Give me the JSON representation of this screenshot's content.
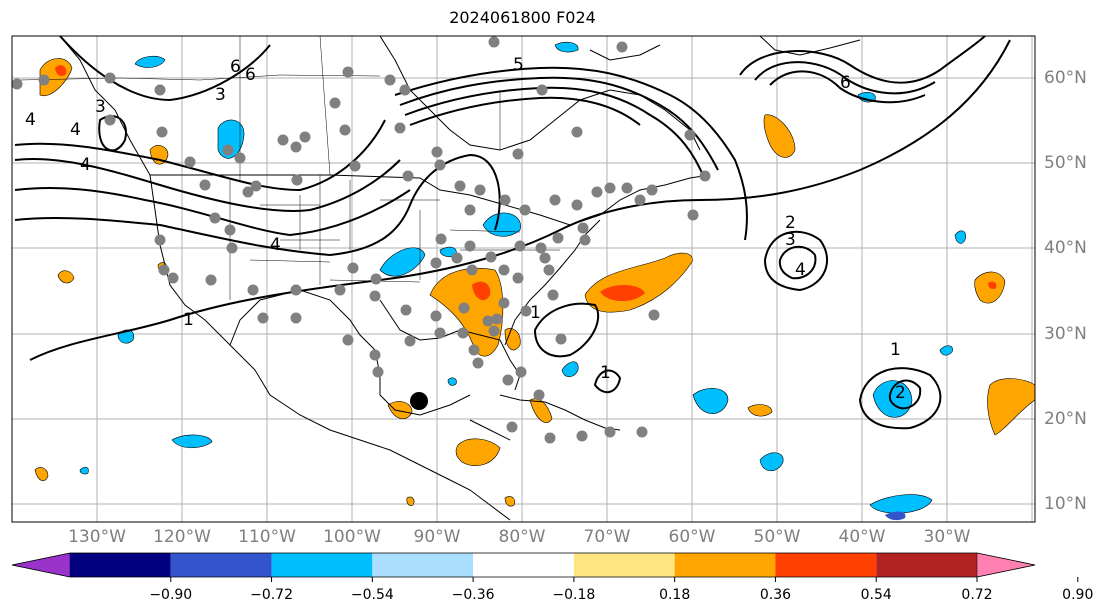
{
  "title": "2024061800 F024",
  "lon_labels": [
    "130°W",
    "120°W",
    "110°W",
    "100°W",
    "90°W",
    "80°W",
    "70°W",
    "60°W",
    "50°W",
    "40°W",
    "30°W"
  ],
  "lat_labels": [
    "60°N",
    "50°N",
    "40°N",
    "30°N",
    "20°N",
    "10°N"
  ],
  "colorbar": {
    "ticks": [
      "−0.90",
      "−0.72",
      "−0.54",
      "−0.36",
      "−0.18",
      "0.18",
      "0.36",
      "0.54",
      "0.72",
      "0.90"
    ],
    "colors": [
      "#9933cc",
      "#000080",
      "#3355cc",
      "#00bfff",
      "#aadfff",
      "#ffffff",
      "#ffe680",
      "#ffa500",
      "#ff4000",
      "#b22222",
      "#ff80b0"
    ]
  },
  "contour_labels": [
    "1",
    "1",
    "1",
    "1",
    "2",
    "2",
    "3",
    "3",
    "3",
    "4",
    "4",
    "4",
    "4",
    "4",
    "5",
    "6",
    "6",
    "6"
  ],
  "colors": {
    "stations": "#808080",
    "positive": "#ffa500",
    "positive_strong": "#ff4500",
    "negative": "#00bfff",
    "negative_strong": "#3355cc",
    "grid": "#b0b0b0",
    "marker": "#000000"
  }
}
